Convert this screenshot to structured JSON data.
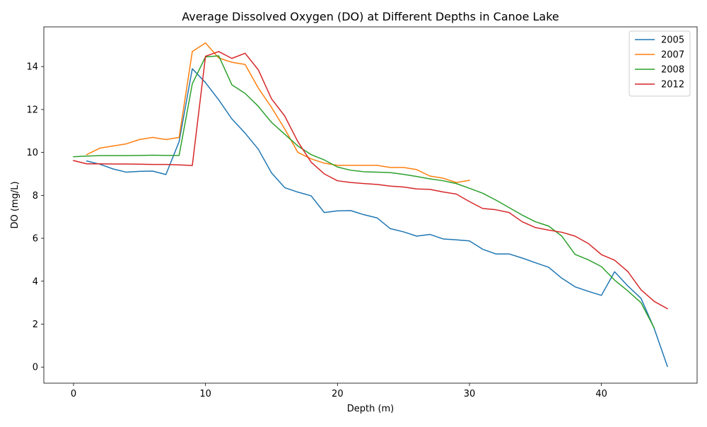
{
  "chart_data": {
    "type": "line",
    "title": "Average Dissolved Oxygen (DO) at Different Depths in Canoe Lake",
    "xlabel": "Depth (m)",
    "ylabel": "DO (mg/L)",
    "xlim": [
      -2.25,
      47.25
    ],
    "ylim": [
      -0.75,
      15.85
    ],
    "xticks": [
      0,
      10,
      20,
      30,
      40
    ],
    "yticks": [
      0,
      2,
      4,
      6,
      8,
      10,
      12,
      14
    ],
    "grid": false,
    "legend": "top-right",
    "series": [
      {
        "name": "2005",
        "color": "#1f77b4",
        "x": [
          1,
          2,
          3,
          4,
          5,
          6,
          7,
          8,
          9,
          10,
          11,
          12,
          13,
          14,
          15,
          16,
          17,
          18,
          19,
          20,
          21,
          22,
          23,
          24,
          25,
          26,
          27,
          28,
          29,
          30,
          31,
          32,
          33,
          34,
          35,
          36,
          37,
          38,
          39,
          40,
          41,
          42,
          43,
          44,
          45
        ],
        "y": [
          9.6,
          9.45,
          9.23,
          9.08,
          9.12,
          9.13,
          8.97,
          10.5,
          13.9,
          13.25,
          12.45,
          11.56,
          10.9,
          10.15,
          9.05,
          8.36,
          8.15,
          7.98,
          7.2,
          7.28,
          7.29,
          7.1,
          6.95,
          6.45,
          6.3,
          6.1,
          6.18,
          5.97,
          5.93,
          5.88,
          5.49,
          5.27,
          5.27,
          5.08,
          4.86,
          4.65,
          4.14,
          3.74,
          3.53,
          3.34,
          4.44,
          3.78,
          3.2,
          1.8,
          0.03
        ]
      },
      {
        "name": "2007",
        "color": "#ff7f0e",
        "x": [
          1,
          2,
          3,
          4,
          5,
          6,
          7,
          8,
          9,
          10,
          11,
          12,
          13,
          14,
          15,
          16,
          17,
          18,
          19,
          20,
          21,
          22,
          23,
          24,
          25,
          26,
          27,
          28,
          29,
          30
        ],
        "y": [
          9.9,
          10.2,
          10.3,
          10.4,
          10.6,
          10.7,
          10.6,
          10.7,
          14.7,
          15.1,
          14.4,
          14.2,
          14.1,
          13.0,
          12.1,
          11.1,
          10.0,
          9.7,
          9.5,
          9.4,
          9.4,
          9.4,
          9.4,
          9.3,
          9.3,
          9.2,
          8.9,
          8.8,
          8.6,
          8.7
        ]
      },
      {
        "name": "2008",
        "color": "#2ca02c",
        "x": [
          0,
          1,
          2,
          3,
          4,
          5,
          6,
          7,
          8,
          9,
          10,
          11,
          12,
          13,
          14,
          15,
          16,
          17,
          18,
          19,
          20,
          21,
          22,
          23,
          24,
          25,
          26,
          27,
          28,
          29,
          30,
          31,
          32,
          33,
          34,
          35,
          36,
          37,
          38,
          39,
          40,
          41,
          42,
          43,
          44
        ],
        "y": [
          9.8,
          9.83,
          9.85,
          9.85,
          9.85,
          9.86,
          9.87,
          9.86,
          9.86,
          13.2,
          14.45,
          14.5,
          13.15,
          12.75,
          12.15,
          11.4,
          10.85,
          10.3,
          9.9,
          9.65,
          9.32,
          9.17,
          9.1,
          9.08,
          9.06,
          8.98,
          8.88,
          8.77,
          8.68,
          8.55,
          8.33,
          8.1,
          7.78,
          7.43,
          7.08,
          6.77,
          6.57,
          6.1,
          5.25,
          5.0,
          4.68,
          4.05,
          3.55,
          3.0,
          1.82
        ]
      },
      {
        "name": "2012",
        "color": "#d62728",
        "x": [
          0,
          1,
          2,
          3,
          4,
          5,
          6,
          7,
          8,
          9,
          10,
          11,
          12,
          13,
          14,
          15,
          16,
          17,
          18,
          19,
          20,
          21,
          22,
          23,
          24,
          25,
          26,
          27,
          28,
          29,
          30,
          31,
          32,
          33,
          34,
          35,
          36,
          37,
          38,
          39,
          40,
          41,
          42,
          43,
          44,
          45
        ],
        "y": [
          9.62,
          9.47,
          9.47,
          9.46,
          9.46,
          9.45,
          9.44,
          9.44,
          9.42,
          9.39,
          14.48,
          14.7,
          14.38,
          14.62,
          13.85,
          12.5,
          11.7,
          10.5,
          9.55,
          9.0,
          8.68,
          8.6,
          8.55,
          8.51,
          8.43,
          8.39,
          8.3,
          8.28,
          8.16,
          8.06,
          7.71,
          7.39,
          7.33,
          7.2,
          6.77,
          6.5,
          6.38,
          6.28,
          6.1,
          5.76,
          5.24,
          4.98,
          4.45,
          3.6,
          3.06,
          2.72
        ]
      }
    ]
  }
}
